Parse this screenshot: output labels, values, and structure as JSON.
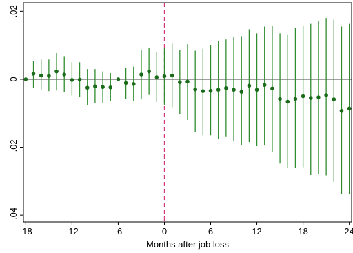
{
  "chart_data": {
    "type": "scatter",
    "title": "",
    "xlabel": "Months after job loss",
    "ylabel": "",
    "xlim": [
      -18.3,
      24.3
    ],
    "ylim": [
      -0.042,
      0.0225
    ],
    "x_ticks": [
      -18,
      -12,
      -6,
      0,
      6,
      12,
      18,
      24
    ],
    "x_tick_labels": [
      "-18",
      "-12",
      "-6",
      "0",
      "6",
      "12",
      "18",
      "24"
    ],
    "y_ticks": [
      0.02,
      0,
      -0.02,
      -0.04
    ],
    "y_tick_labels": [
      ".02",
      "0",
      "-.02",
      "-.04"
    ],
    "reference_lines": {
      "horizontal_y": 0,
      "vertical_x": 0,
      "vertical_style": "dashed",
      "vertical_color": "#d4387a"
    },
    "colors": {
      "series": "#1a6b1a",
      "ci": "#2e8b2e",
      "axis": "#000000"
    },
    "grid": false,
    "legend": "none",
    "series": [
      {
        "x": [
          -18,
          -17,
          -16,
          -15,
          -14,
          -13,
          -12,
          -11,
          -10,
          -9,
          -8,
          -7,
          -6,
          -5,
          -4,
          -3,
          -2,
          -1,
          0,
          1,
          2,
          3,
          4,
          5,
          6,
          7,
          8,
          9,
          10,
          11,
          12,
          13,
          14,
          15,
          16,
          17,
          18,
          19,
          20,
          21,
          22,
          23,
          24
        ],
        "y": [
          0.0,
          0.0016,
          0.0011,
          0.001,
          0.0023,
          0.0014,
          -0.0002,
          -0.0001,
          -0.0025,
          -0.0021,
          -0.0023,
          -0.0024,
          0.0,
          -0.0011,
          -0.0014,
          0.0014,
          0.0023,
          0.0006,
          0.0009,
          0.0011,
          -0.0009,
          -0.0007,
          -0.003,
          -0.0035,
          -0.0034,
          -0.0031,
          -0.0026,
          -0.0031,
          -0.0037,
          -0.0019,
          -0.0031,
          -0.0017,
          -0.0027,
          -0.0058,
          -0.0066,
          -0.0058,
          -0.005,
          -0.0055,
          -0.0053,
          -0.0047,
          -0.0059,
          -0.0093,
          -0.0086
        ],
        "ci_lower": [
          0.0,
          -0.0025,
          -0.003,
          -0.0035,
          -0.0033,
          -0.0037,
          -0.0048,
          -0.0053,
          -0.0076,
          -0.007,
          -0.007,
          -0.0064,
          0.0,
          -0.0057,
          -0.0065,
          -0.0058,
          -0.0046,
          -0.0067,
          -0.0076,
          -0.0082,
          -0.0102,
          -0.012,
          -0.0155,
          -0.0165,
          -0.0165,
          -0.0175,
          -0.017,
          -0.0182,
          -0.0194,
          -0.0185,
          -0.0197,
          -0.0195,
          -0.0214,
          -0.0248,
          -0.026,
          -0.026,
          -0.0259,
          -0.0282,
          -0.028,
          -0.0283,
          -0.0302,
          -0.0338,
          -0.0338
        ],
        "ci_upper": [
          0.0,
          0.0053,
          0.0058,
          0.0058,
          0.0077,
          0.0068,
          0.005,
          0.005,
          0.003,
          0.003,
          0.0023,
          0.0018,
          0.0,
          0.0034,
          0.0037,
          0.0085,
          0.0092,
          0.008,
          0.0092,
          0.0105,
          0.0086,
          0.0103,
          0.0084,
          0.009,
          0.01,
          0.0112,
          0.0117,
          0.0125,
          0.0127,
          0.0147,
          0.0135,
          0.0155,
          0.0157,
          0.0135,
          0.013,
          0.0152,
          0.0157,
          0.0163,
          0.0172,
          0.018,
          0.0175,
          0.0155,
          0.0163
        ]
      }
    ]
  }
}
